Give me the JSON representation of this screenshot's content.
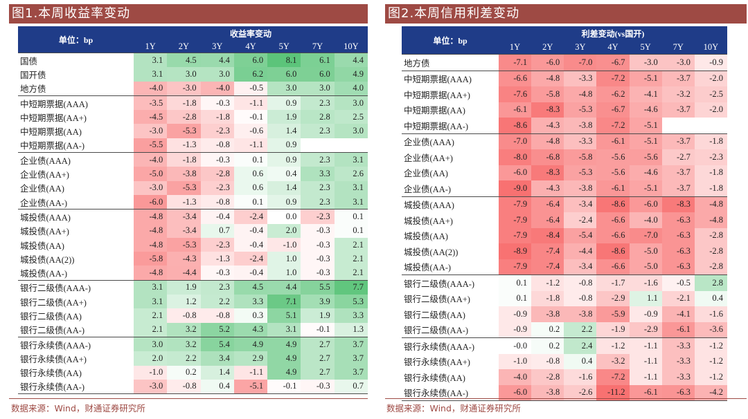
{
  "left": {
    "title": "图1.本周收益率变动",
    "unit_label": "单位：bp",
    "group_label": "收益率变动",
    "tenors": [
      "1Y",
      "2Y",
      "3Y",
      "4Y",
      "5Y",
      "7Y",
      "10Y"
    ],
    "groups": [
      {
        "rows": [
          {
            "label": "国债",
            "values": [
              "3.1",
              "4.5",
              "4.4",
              "6.0",
              "8.1",
              "6.1",
              "4.4"
            ]
          },
          {
            "label": "国开债",
            "values": [
              "3.1",
              "3.0",
              "3.0",
              "6.2",
              "6.0",
              "6.0",
              "4.9"
            ]
          },
          {
            "label": "地方债",
            "values": [
              "-4.0",
              "-3.0",
              "-4.0",
              "-0.5",
              "3.0",
              "3.0",
              "4.0"
            ]
          }
        ]
      },
      {
        "rows": [
          {
            "label": "中短期票据(AAA)",
            "values": [
              "-3.5",
              "-1.8",
              "-0.3",
              "-1.1",
              "0.9",
              "2.3",
              "3.0"
            ]
          },
          {
            "label": "中短期票据(AA+)",
            "values": [
              "-4.5",
              "-2.8",
              "-1.8",
              "-0.1",
              "1.9",
              "2.8",
              "2.5"
            ]
          },
          {
            "label": "中短期票据(AA)",
            "values": [
              "-3.0",
              "-5.3",
              "-2.3",
              "-0.6",
              "1.4",
              "2.3",
              "3.0"
            ]
          },
          {
            "label": "中短期票据(AA-)",
            "values": [
              "-5.5",
              "-1.3",
              "-0.8",
              "-1.1",
              "0.9",
              "",
              ""
            ]
          }
        ]
      },
      {
        "rows": [
          {
            "label": "企业债(AAA)",
            "values": [
              "-4.0",
              "-1.8",
              "-0.3",
              "0.1",
              "0.9",
              "2.3",
              "3.1"
            ]
          },
          {
            "label": "企业债(AA+)",
            "values": [
              "-5.0",
              "-3.8",
              "-2.8",
              "0.6",
              "0.4",
              "3.3",
              "2.6"
            ]
          },
          {
            "label": "企业债(AA)",
            "values": [
              "-3.0",
              "-5.3",
              "-2.3",
              "0.6",
              "1.4",
              "2.3",
              "3.1"
            ]
          },
          {
            "label": "企业债(AA-)",
            "values": [
              "-6.0",
              "-1.3",
              "-0.8",
              "0.1",
              "0.9",
              "2.3",
              "3.1"
            ]
          }
        ]
      },
      {
        "rows": [
          {
            "label": "城投债(AAA)",
            "values": [
              "-4.8",
              "-3.4",
              "-0.4",
              "-2.4",
              "0.0",
              "-2.3",
              "0.1"
            ]
          },
          {
            "label": "城投债(AA+)",
            "values": [
              "-4.8",
              "-3.4",
              "0.7",
              "-0.4",
              "2.0",
              "-0.3",
              "0.1"
            ]
          },
          {
            "label": "城投债(AA)",
            "values": [
              "-4.8",
              "-5.3",
              "-2.3",
              "-0.4",
              "-1.0",
              "-0.3",
              "2.1"
            ]
          },
          {
            "label": "城投债(AA(2))",
            "values": [
              "-5.8",
              "-4.3",
              "-1.3",
              "-2.4",
              "1.0",
              "-0.3",
              "2.1"
            ]
          },
          {
            "label": "城投债(AA-)",
            "values": [
              "-4.8",
              "-4.4",
              "-0.3",
              "-0.4",
              "1.0",
              "-0.3",
              "2.1"
            ]
          }
        ]
      },
      {
        "rows": [
          {
            "label": "银行二级债(AAA-)",
            "values": [
              "3.1",
              "1.9",
              "2.3",
              "4.5",
              "4.4",
              "5.5",
              "7.7"
            ]
          },
          {
            "label": "银行二级债(AA+)",
            "values": [
              "3.1",
              "1.2",
              "2.2",
              "3.3",
              "7.1",
              "3.9",
              "5.3"
            ]
          },
          {
            "label": "银行二级债(AA)",
            "values": [
              "2.1",
              "-0.8",
              "-0.8",
              "0.3",
              "5.1",
              "1.9",
              "3.3"
            ]
          },
          {
            "label": "银行二级债(AA-)",
            "values": [
              "2.1",
              "3.2",
              "5.2",
              "4.3",
              "3.1",
              "-0.1",
              "1.3"
            ]
          }
        ]
      },
      {
        "rows": [
          {
            "label": "银行永续债(AAA-)",
            "values": [
              "3.0",
              "3.2",
              "5.4",
              "4.9",
              "4.9",
              "2.7",
              "3.7"
            ]
          },
          {
            "label": "银行永续债(AA+)",
            "values": [
              "2.0",
              "2.2",
              "3.4",
              "2.9",
              "4.9",
              "2.7",
              "3.7"
            ]
          },
          {
            "label": "银行永续债(AA)",
            "values": [
              "-1.0",
              "0.2",
              "1.4",
              "-1.1",
              "4.9",
              "2.7",
              "3.7"
            ]
          },
          {
            "label": "银行永续债(AA-)",
            "values": [
              "-3.0",
              "-0.8",
              "0.4",
              "-5.1",
              "-0.1",
              "-0.3",
              "0.7"
            ]
          }
        ]
      }
    ],
    "source": "数据来源：Wind，财通证券研究所"
  },
  "right": {
    "title": "图2.本周信用利差变动",
    "unit_label": "单位：bp",
    "group_label": "利差变动(vs国开)",
    "tenors": [
      "1Y",
      "2Y",
      "3Y",
      "4Y",
      "5Y",
      "7Y",
      "10Y"
    ],
    "groups": [
      {
        "rows": [
          {
            "label": "地方债",
            "values": [
              "-7.1",
              "-6.0",
              "-7.0",
              "-6.7",
              "-3.0",
              "-3.0",
              "-0.9"
            ]
          }
        ]
      },
      {
        "rows": [
          {
            "label": "中短期票据(AAA)",
            "values": [
              "-6.6",
              "-4.8",
              "-3.3",
              "-7.2",
              "-5.1",
              "-3.7",
              "-2.0"
            ]
          },
          {
            "label": "中短期票据(AA+)",
            "values": [
              "-7.6",
              "-5.8",
              "-4.8",
              "-6.2",
              "-4.1",
              "-3.2",
              "-2.5"
            ]
          },
          {
            "label": "中短期票据(AA)",
            "values": [
              "-6.1",
              "-8.3",
              "-5.3",
              "-6.7",
              "-4.6",
              "-3.7",
              "-2.0"
            ]
          },
          {
            "label": "中短期票据(AA-)",
            "values": [
              "-8.6",
              "-4.3",
              "-3.8",
              "-7.2",
              "-5.1",
              "",
              ""
            ]
          }
        ]
      },
      {
        "rows": [
          {
            "label": "企业债(AAA)",
            "values": [
              "-7.0",
              "-4.8",
              "-3.3",
              "-6.1",
              "-5.1",
              "-3.7",
              "-1.8"
            ]
          },
          {
            "label": "企业债(AA+)",
            "values": [
              "-8.0",
              "-6.8",
              "-5.8",
              "-5.6",
              "-5.6",
              "-2.7",
              "-2.3"
            ]
          },
          {
            "label": "企业债(AA)",
            "values": [
              "-6.0",
              "-8.3",
              "-5.3",
              "-5.6",
              "-4.6",
              "-3.7",
              "-1.8"
            ]
          },
          {
            "label": "企业债(AA-)",
            "values": [
              "-9.0",
              "-4.3",
              "-3.8",
              "-6.1",
              "-5.1",
              "-3.7",
              "-1.8"
            ]
          }
        ]
      },
      {
        "rows": [
          {
            "label": "城投债(AAA)",
            "values": [
              "-7.9",
              "-6.4",
              "-3.4",
              "-8.6",
              "-6.0",
              "-8.3",
              "-4.8"
            ]
          },
          {
            "label": "城投债(AA+)",
            "values": [
              "-7.9",
              "-6.4",
              "-2.4",
              "-6.6",
              "-4.0",
              "-6.3",
              "-4.8"
            ]
          },
          {
            "label": "城投债(AA)",
            "values": [
              "-7.9",
              "-8.4",
              "-5.4",
              "-6.6",
              "-7.0",
              "-6.3",
              "-2.8"
            ]
          },
          {
            "label": "城投债(AA(2))",
            "values": [
              "-8.9",
              "-7.4",
              "-4.4",
              "-8.6",
              "-5.0",
              "-6.3",
              "-2.8"
            ]
          },
          {
            "label": "城投债(AA-)",
            "values": [
              "-7.9",
              "-7.4",
              "-3.4",
              "-6.6",
              "-5.0",
              "-6.3",
              "-2.8"
            ]
          }
        ]
      },
      {
        "rows": [
          {
            "label": "银行二级债(AAA-)",
            "values": [
              "0.1",
              "-1.2",
              "-0.8",
              "-1.7",
              "-1.6",
              "-0.5",
              "2.8"
            ]
          },
          {
            "label": "银行二级债(AA+)",
            "values": [
              "0.1",
              "-1.8",
              "-0.8",
              "-2.9",
              "1.1",
              "-2.1",
              "0.4"
            ]
          },
          {
            "label": "银行二级债(AA)",
            "values": [
              "-0.9",
              "-3.8",
              "-3.8",
              "-5.9",
              "-0.9",
              "-4.1",
              "-1.6"
            ]
          },
          {
            "label": "银行二级债(AA-)",
            "values": [
              "-0.9",
              "0.2",
              "2.2",
              "-1.9",
              "-2.9",
              "-6.1",
              "-3.6"
            ]
          }
        ]
      },
      {
        "rows": [
          {
            "label": "银行永续债(AAA-)",
            "values": [
              "-0.0",
              "0.2",
              "2.4",
              "-1.2",
              "-1.1",
              "-3.3",
              "-1.2"
            ]
          },
          {
            "label": "银行永续债(AA+)",
            "values": [
              "-1.0",
              "-0.8",
              "0.4",
              "-3.2",
              "-1.1",
              "-3.3",
              "-1.2"
            ]
          },
          {
            "label": "银行永续债(AA)",
            "values": [
              "-4.0",
              "-2.8",
              "-1.6",
              "-7.2",
              "-1.1",
              "-3.3",
              "-1.2"
            ]
          },
          {
            "label": "银行永续债(AA-)",
            "values": [
              "-6.0",
              "-3.8",
              "-2.6",
              "-11.2",
              "-6.1",
              "-6.3",
              "-4.2"
            ]
          }
        ]
      }
    ],
    "source": "数据来源：Wind，财通证券研究所"
  },
  "colors": {
    "title_bar": "#9e4a44",
    "header_bg": "#1f3c88",
    "negative_strong": "#f87171",
    "positive_strong": "#5cc47a"
  }
}
